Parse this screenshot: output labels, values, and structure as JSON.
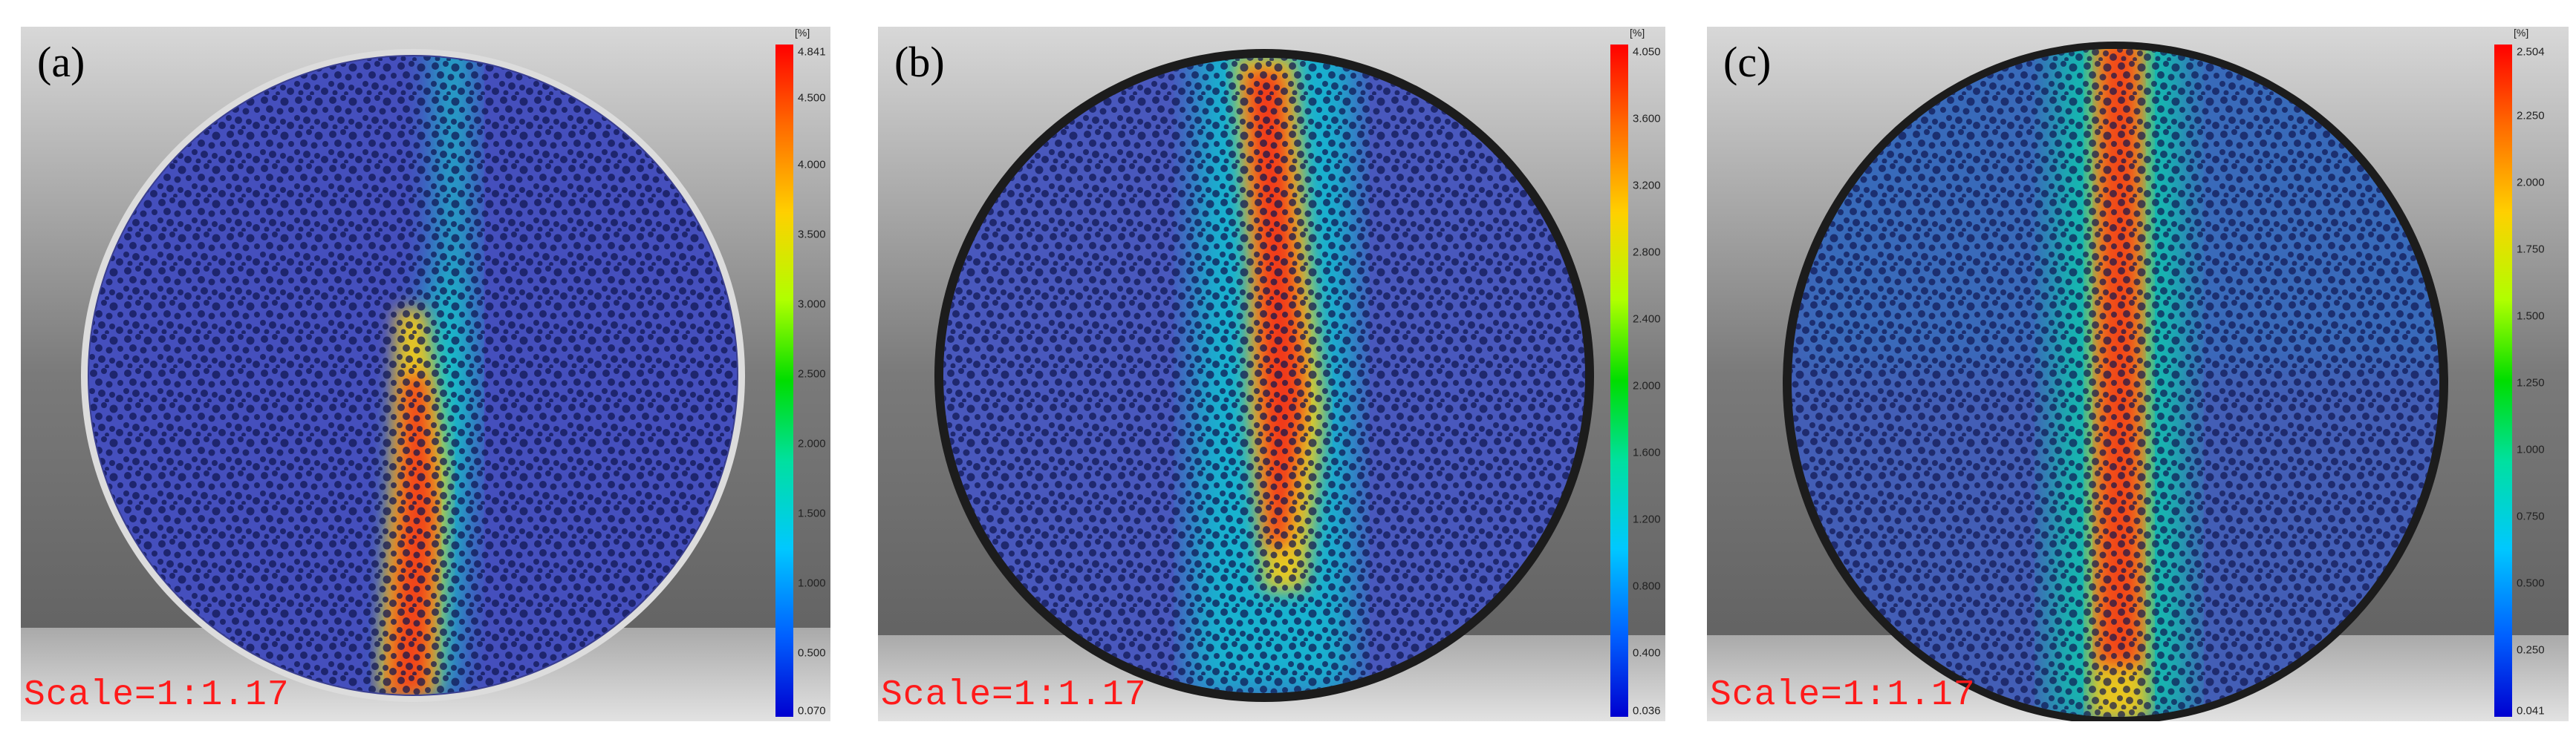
{
  "panels": [
    {
      "label": "(a)",
      "scale_text": "Scale=1:1.17",
      "colorbar": {
        "unit": "[%]",
        "ticks": [
          "4.841",
          "4.500",
          "4.000",
          "3.500",
          "3.000",
          "2.500",
          "2.000",
          "1.500",
          "1.000",
          "0.500",
          "0.070"
        ]
      }
    },
    {
      "label": "(b)",
      "scale_text": "Scale=1:1.17",
      "colorbar": {
        "unit": "[%]",
        "ticks": [
          "4.050",
          "3.600",
          "3.200",
          "2.800",
          "2.400",
          "2.000",
          "1.600",
          "1.200",
          "0.800",
          "0.400",
          "0.036"
        ]
      }
    },
    {
      "label": "(c)",
      "scale_text": "Scale=1:1.17",
      "colorbar": {
        "unit": "[%]",
        "ticks": [
          "2.504",
          "2.250",
          "2.000",
          "1.750",
          "1.500",
          "1.250",
          "1.000",
          "0.750",
          "0.500",
          "0.250",
          "0.041"
        ]
      }
    }
  ]
}
